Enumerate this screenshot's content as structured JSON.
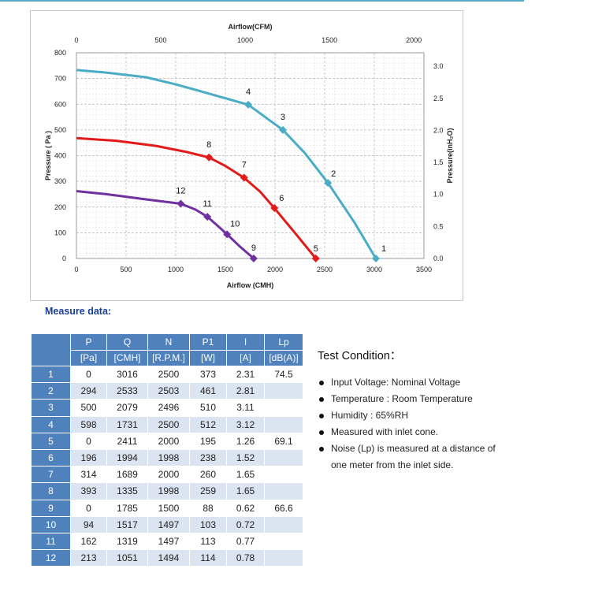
{
  "chart_data": {
    "type": "line",
    "top_axis_title": "Airflow(CFM)",
    "xlabel": "Airflow (CMH)",
    "ylabel": "Pressure ( Pa )",
    "right_axis_title": "Pressure(inH₂O)",
    "xlim": [
      0,
      3500
    ],
    "ylim": [
      0,
      800
    ],
    "x_ticks": [
      "0",
      "500",
      "1000",
      "1500",
      "2000",
      "2500",
      "3000",
      "3500"
    ],
    "y_ticks": [
      "0",
      "100",
      "200",
      "300",
      "400",
      "500",
      "600",
      "700",
      "800"
    ],
    "top_axis_ticks": [
      "0",
      "500",
      "1000",
      "1500",
      "2000"
    ],
    "top_axis_cmh_per_unit": 1.699,
    "right_axis_ticks": [
      "0.0",
      "0.5",
      "1.0",
      "1.5",
      "2.0",
      "2.5",
      "3.0"
    ],
    "right_axis_pa_per_unit": 249.1,
    "grid": true,
    "series": [
      {
        "color": "#4bacc6",
        "curve": [
          [
            0,
            733
          ],
          [
            300,
            723
          ],
          [
            700,
            705
          ],
          [
            1000,
            677
          ],
          [
            1300,
            645
          ],
          [
            1731,
            598
          ],
          [
            2079,
            500
          ],
          [
            2300,
            410
          ],
          [
            2533,
            294
          ],
          [
            2800,
            140
          ],
          [
            3016,
            0
          ]
        ],
        "points": [
          [
            3016,
            0,
            "1"
          ],
          [
            2533,
            294,
            "2"
          ],
          [
            2079,
            500,
            "3"
          ],
          [
            1731,
            598,
            "4"
          ]
        ]
      },
      {
        "color": "#e41a1a",
        "curve": [
          [
            0,
            468
          ],
          [
            400,
            458
          ],
          [
            800,
            438
          ],
          [
            1100,
            415
          ],
          [
            1335,
            393
          ],
          [
            1500,
            360
          ],
          [
            1689,
            314
          ],
          [
            1850,
            260
          ],
          [
            1994,
            196
          ],
          [
            2200,
            100
          ],
          [
            2411,
            0
          ]
        ],
        "points": [
          [
            2411,
            0,
            "5"
          ],
          [
            1994,
            196,
            "6"
          ],
          [
            1689,
            314,
            "7"
          ],
          [
            1335,
            393,
            "8"
          ]
        ]
      },
      {
        "color": "#7030a0",
        "curve": [
          [
            0,
            262
          ],
          [
            300,
            250
          ],
          [
            700,
            230
          ],
          [
            1051,
            213
          ],
          [
            1200,
            190
          ],
          [
            1319,
            162
          ],
          [
            1420,
            128
          ],
          [
            1517,
            94
          ],
          [
            1650,
            45
          ],
          [
            1785,
            0
          ]
        ],
        "points": [
          [
            1785,
            0,
            "9"
          ],
          [
            1517,
            94,
            "10"
          ],
          [
            1319,
            162,
            "11"
          ],
          [
            1051,
            213,
            "12"
          ]
        ]
      }
    ]
  },
  "measure_title": "Measure data:",
  "table": {
    "headers": [
      "P",
      "Q",
      "N",
      "P1",
      "I",
      "Lp"
    ],
    "units": [
      "[Pa]",
      "[CMH]",
      "[R.P.M.]",
      "[W]",
      "[A]",
      "[dB(A)]"
    ],
    "rows": [
      [
        "1",
        "0",
        "3016",
        "2500",
        "373",
        "2.31",
        "74.5"
      ],
      [
        "2",
        "294",
        "2533",
        "2503",
        "461",
        "2.81",
        ""
      ],
      [
        "3",
        "500",
        "2079",
        "2496",
        "510",
        "3.11",
        ""
      ],
      [
        "4",
        "598",
        "1731",
        "2500",
        "512",
        "3.12",
        ""
      ],
      [
        "5",
        "0",
        "2411",
        "2000",
        "195",
        "1.26",
        "69.1"
      ],
      [
        "6",
        "196",
        "1994",
        "1998",
        "238",
        "1.52",
        ""
      ],
      [
        "7",
        "314",
        "1689",
        "2000",
        "260",
        "1.65",
        ""
      ],
      [
        "8",
        "393",
        "1335",
        "1998",
        "259",
        "1.65",
        ""
      ],
      [
        "9",
        "0",
        "1785",
        "1500",
        "88",
        "0.62",
        "66.6"
      ],
      [
        "10",
        "94",
        "1517",
        "1497",
        "103",
        "0.72",
        ""
      ],
      [
        "11",
        "162",
        "1319",
        "1497",
        "113",
        "0.77",
        ""
      ],
      [
        "12",
        "213",
        "1051",
        "1494",
        "114",
        "0.78",
        ""
      ]
    ]
  },
  "test_condition": {
    "title": "Test Condition：",
    "items": [
      "Input Voltage: Nominal Voltage",
      "Temperature : Room Temperature",
      "Humidity : 65%RH",
      "Measured with inlet cone.",
      "Noise (Lp) is measured at a distance of",
      "one meter from the inlet side."
    ]
  }
}
